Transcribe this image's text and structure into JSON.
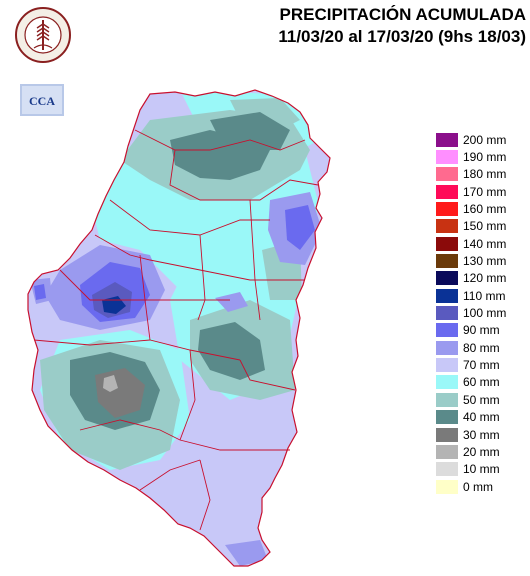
{
  "header": {
    "title_line1": "PRECIPITACIÓN ACUMULADA",
    "title_line2": "11/03/20 al 17/03/20 (9hs 18/03)"
  },
  "logos": {
    "seal_text": "BOLSA DE CEREALES DE ENTRE RIOS",
    "cca_text": "CCA"
  },
  "legend": {
    "items": [
      {
        "label": "200 mm",
        "color": "#8b0f8b"
      },
      {
        "label": "190 mm",
        "color": "#ff8fff"
      },
      {
        "label": "180 mm",
        "color": "#ff6a8f"
      },
      {
        "label": "170 mm",
        "color": "#ff0a58"
      },
      {
        "label": "160 mm",
        "color": "#ff1a1a"
      },
      {
        "label": "150 mm",
        "color": "#c83212"
      },
      {
        "label": "140 mm",
        "color": "#8b0a0a"
      },
      {
        "label": "130 mm",
        "color": "#6b3a0a"
      },
      {
        "label": "120 mm",
        "color": "#0a0a5a"
      },
      {
        "label": "110 mm",
        "color": "#0a3296"
      },
      {
        "label": "100 mm",
        "color": "#5a5abf"
      },
      {
        "label": "90 mm",
        "color": "#6a6aef"
      },
      {
        "label": "80 mm",
        "color": "#9a9aef"
      },
      {
        "label": "70 mm",
        "color": "#c8c8f8"
      },
      {
        "label": "60 mm",
        "color": "#9af8f8"
      },
      {
        "label": "50 mm",
        "color": "#9accc8"
      },
      {
        "label": "40 mm",
        "color": "#5a8a8a"
      },
      {
        "label": "30 mm",
        "color": "#7a7a7a"
      },
      {
        "label": "20 mm",
        "color": "#b4b4b4"
      },
      {
        "label": "10 mm",
        "color": "#dcdcdc"
      },
      {
        "label": "0 mm",
        "color": "#ffffc8"
      }
    ]
  }
}
